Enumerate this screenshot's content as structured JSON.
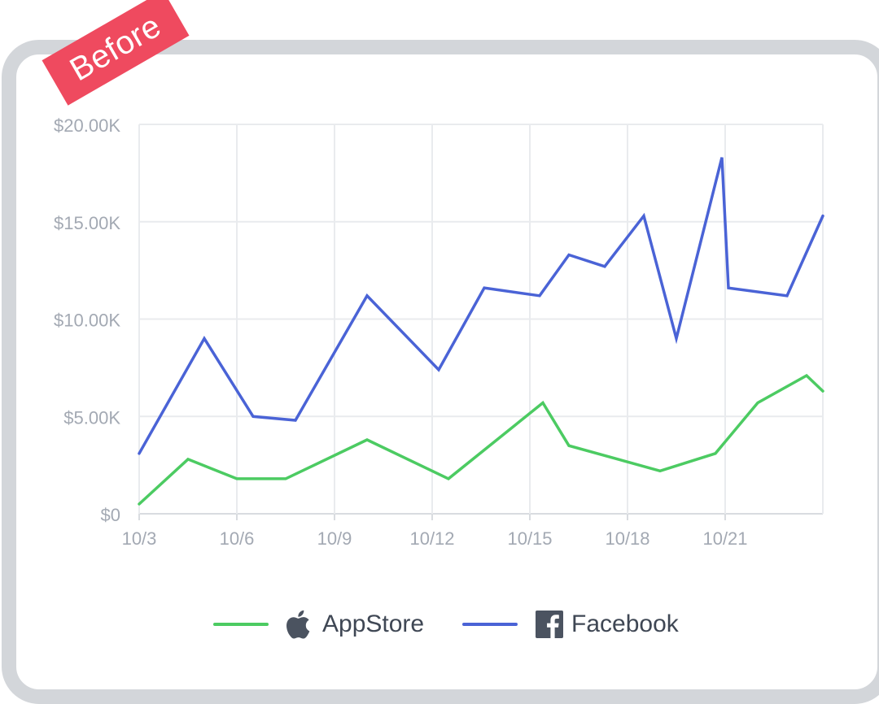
{
  "badge": {
    "label": "Before",
    "color": "#ef4a5f"
  },
  "chart_data": {
    "type": "line",
    "x": [
      "10/3",
      "10/4",
      "10/5",
      "10/6",
      "10/7",
      "10/8",
      "10/9",
      "10/10",
      "10/11",
      "10/12",
      "10/13",
      "10/14",
      "10/15",
      "10/16",
      "10/17",
      "10/18",
      "10/19",
      "10/20",
      "10/21",
      "10/22",
      "10/23",
      "10/24"
    ],
    "x_tick_labels": [
      "10/3",
      "10/6",
      "10/9",
      "10/12",
      "10/15",
      "10/18",
      "10/21"
    ],
    "y_tick_labels": [
      "$0",
      "$5.00K",
      "$10.00K",
      "$15.00K",
      "$20.00K"
    ],
    "ylim": [
      0,
      20000
    ],
    "grid": true,
    "legend_position": "bottom",
    "series": [
      {
        "name": "AppStore",
        "icon": "apple-icon",
        "color": "#4ccb62",
        "points": [
          [
            "10/3",
            500
          ],
          [
            "10/4.5",
            2800
          ],
          [
            "10/6",
            1800
          ],
          [
            "10/7.5",
            1800
          ],
          [
            "10/10",
            3800
          ],
          [
            "10/12.5",
            1800
          ],
          [
            "10/15.4",
            5700
          ],
          [
            "10/16.2",
            3500
          ],
          [
            "10/19",
            2200
          ],
          [
            "10/20.7",
            3100
          ],
          [
            "10/22",
            5700
          ],
          [
            "10/23.5",
            7100
          ],
          [
            "10/24",
            6300
          ]
        ]
      },
      {
        "name": "Facebook",
        "icon": "facebook-icon",
        "color": "#4a63d6",
        "points": [
          [
            "10/3",
            3100
          ],
          [
            "10/5",
            9000
          ],
          [
            "10/6.5",
            5000
          ],
          [
            "10/7.8",
            4800
          ],
          [
            "10/10",
            11200
          ],
          [
            "10/12.2",
            7400
          ],
          [
            "10/13.6",
            11600
          ],
          [
            "10/15.3",
            11200
          ],
          [
            "10/16.2",
            13300
          ],
          [
            "10/17.3",
            12700
          ],
          [
            "10/18.5",
            15300
          ],
          [
            "10/19.5",
            9000
          ],
          [
            "10/20.9",
            18300
          ],
          [
            "10/21.1",
            11600
          ],
          [
            "10/22.9",
            11200
          ],
          [
            "10/24",
            15300
          ]
        ]
      }
    ]
  }
}
